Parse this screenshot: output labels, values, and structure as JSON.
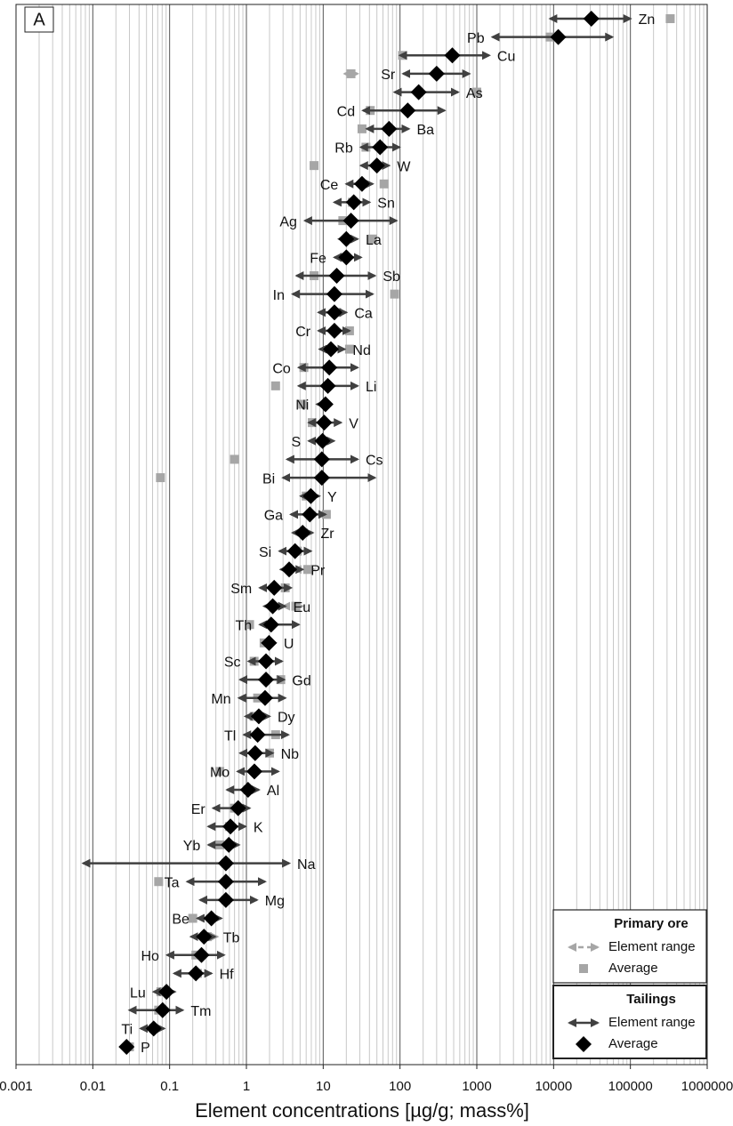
{
  "chart_data": {
    "type": "range_dot",
    "panel_label": "A",
    "xlabel": "Element concentrations [µg/g; mass%]",
    "xlog": true,
    "xlim": [
      0.001,
      1000000
    ],
    "xticks": [
      0.001,
      0.01,
      0.1,
      1,
      10,
      100,
      1000,
      10000,
      100000,
      1000000
    ],
    "grid": true,
    "legend": "bottom-right",
    "categories": [
      "Zn",
      "Pb",
      "Cu",
      "Sr",
      "As",
      "Cd",
      "Ba",
      "Rb",
      "W",
      "Ce",
      "Sn",
      "Ag",
      "La",
      "Fe",
      "Sb",
      "In",
      "Ca",
      "Cr",
      "Nd",
      "Co",
      "Li",
      "Ni",
      "V",
      "S",
      "Cs",
      "Bi",
      "Y",
      "Ga",
      "Zr",
      "Si",
      "Pr",
      "Sm",
      "Eu",
      "Th",
      "U",
      "Sc",
      "Gd",
      "Mn",
      "Dy",
      "Tl",
      "Nb",
      "Mo",
      "Al",
      "Er",
      "K",
      "Yb",
      "Na",
      "Ta",
      "Mg",
      "Be",
      "Tb",
      "Ho",
      "Hf",
      "Lu",
      "Tm",
      "Ti",
      "P"
    ],
    "groups": [
      {
        "title": "Primary ore",
        "color": "#a6a6a6",
        "dashed": true,
        "range_label": "Element range",
        "average_label": "Average",
        "average": [
          330000,
          9000,
          108,
          23,
          1000,
          41,
          32,
          36,
          7.6,
          62,
          24,
          18,
          44,
          19,
          7.6,
          85,
          15,
          22,
          22,
          5.6,
          2.4,
          5.4,
          7.2,
          9.8,
          0.7,
          0.076,
          6,
          11,
          5.5,
          4.6,
          6.3,
          3.2,
          4.4,
          1.1,
          1.7,
          1.26,
          2.8,
          1.4,
          1.26,
          2.4,
          2.0,
          0.45,
          1.05,
          0.7,
          0.6,
          0.45,
          0.54,
          0.072,
          0.54,
          0.2,
          0.31,
          0.22,
          0.23,
          0.077,
          0.072,
          0.062,
          0.03
        ],
        "range_min": [
          null,
          null,
          null,
          19,
          null,
          null,
          null,
          null,
          null,
          null,
          null,
          null,
          null,
          null,
          null,
          null,
          null,
          null,
          null,
          null,
          null,
          null,
          null,
          null,
          null,
          null,
          null,
          null,
          null,
          null,
          4.2,
          null,
          3.0,
          null,
          null,
          null,
          null,
          null,
          null,
          null,
          null,
          null,
          null,
          null,
          null,
          null,
          null,
          null,
          null,
          null,
          0.22,
          null,
          null,
          null,
          null,
          null,
          null
        ],
        "range_max": [
          null,
          null,
          null,
          28,
          null,
          null,
          null,
          null,
          null,
          null,
          null,
          null,
          null,
          null,
          null,
          null,
          null,
          null,
          null,
          null,
          null,
          null,
          null,
          null,
          null,
          null,
          null,
          null,
          null,
          null,
          7.6,
          null,
          5.4,
          null,
          null,
          null,
          null,
          null,
          null,
          null,
          null,
          null,
          null,
          null,
          null,
          null,
          null,
          null,
          null,
          null,
          0.42,
          null,
          null,
          null,
          null,
          null,
          null
        ]
      },
      {
        "title": "Tailings",
        "color": "#404040",
        "dashed": false,
        "range_label": "Element range",
        "average_label": "Average",
        "average": [
          31000,
          11500,
          480,
          300,
          175,
          126,
          72,
          55,
          50,
          32,
          25,
          23,
          20,
          20,
          15,
          14,
          14,
          14,
          12.6,
          12,
          11.5,
          10.7,
          10.3,
          9.8,
          9.6,
          9.6,
          6.9,
          6.7,
          5.4,
          4.3,
          3.6,
          2.3,
          2.2,
          2.1,
          1.97,
          1.8,
          1.8,
          1.75,
          1.45,
          1.4,
          1.3,
          1.27,
          1.05,
          0.78,
          0.62,
          0.59,
          0.54,
          0.54,
          0.54,
          0.35,
          0.28,
          0.26,
          0.22,
          0.091,
          0.081,
          0.062,
          0.0275
        ],
        "range_min": [
          9000,
          1600,
          100,
          110,
          85,
          33,
          37,
          31,
          31,
          20,
          14,
          5.8,
          16,
          14,
          4.5,
          4.0,
          8.7,
          8.7,
          9.0,
          4.8,
          4.8,
          8.3,
          6.5,
          6.5,
          3.4,
          3.0,
          5.1,
          3.8,
          4.0,
          2.7,
          2.8,
          1.5,
          1.7,
          1.5,
          1.6,
          1.07,
          0.83,
          0.8,
          0.97,
          0.93,
          0.83,
          0.77,
          0.56,
          0.37,
          0.32,
          0.32,
          0.0075,
          0.17,
          0.25,
          0.23,
          0.19,
          0.093,
          0.115,
          0.062,
          0.03,
          0.042,
          0.023
        ],
        "range_max": [
          100000,
          58000,
          1450,
          800,
          570,
          380,
          130,
          98,
          72,
          44,
          40,
          90,
          28,
          31,
          47,
          44,
          20,
          22,
          19,
          28,
          28,
          12.6,
          17,
          13.8,
          28,
          47,
          8.9,
          10.7,
          7.3,
          6.9,
          5.4,
          3.8,
          3.2,
          4.8,
          2.4,
          2.9,
          3.1,
          3.2,
          2.0,
          3.5,
          2.2,
          2.6,
          1.45,
          1.1,
          0.97,
          0.8,
          3.6,
          1.75,
          1.37,
          0.47,
          0.39,
          0.51,
          0.35,
          0.117,
          0.148,
          0.085,
          0.033
        ]
      }
    ]
  }
}
